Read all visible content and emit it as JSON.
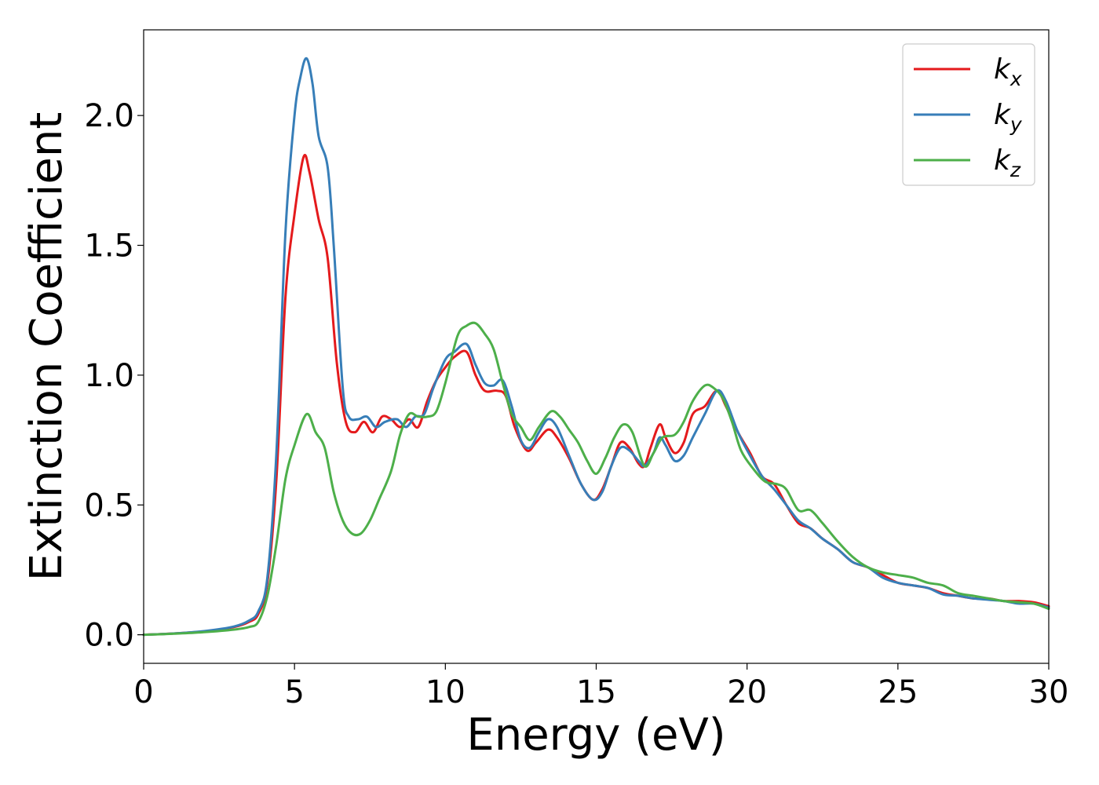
{
  "chart_data": {
    "type": "line",
    "xlabel": "Energy (eV)",
    "ylabel": "Extinction Coefficient",
    "xlim": [
      0,
      30
    ],
    "ylim": [
      -0.11,
      2.33
    ],
    "xticks": [
      0,
      5,
      10,
      15,
      20,
      25,
      30
    ],
    "xtick_labels": [
      "0",
      "5",
      "10",
      "15",
      "20",
      "25",
      "30"
    ],
    "yticks": [
      0.0,
      0.5,
      1.0,
      1.5,
      2.0
    ],
    "ytick_labels": [
      "0.0",
      "0.5",
      "1.0",
      "1.5",
      "2.0"
    ],
    "grid": false,
    "legend_position": "top-right",
    "series": [
      {
        "name": "k_x",
        "label_main": "k",
        "label_sub": "x",
        "color": "#e41a1c",
        "points": [
          [
            0,
            0
          ],
          [
            1,
            0.005
          ],
          [
            2,
            0.013
          ],
          [
            3,
            0.03
          ],
          [
            3.5,
            0.05
          ],
          [
            3.8,
            0.08
          ],
          [
            4.1,
            0.2
          ],
          [
            4.4,
            0.6
          ],
          [
            4.7,
            1.3
          ],
          [
            5.0,
            1.62
          ],
          [
            5.3,
            1.84
          ],
          [
            5.5,
            1.78
          ],
          [
            5.8,
            1.6
          ],
          [
            6.1,
            1.45
          ],
          [
            6.4,
            1.05
          ],
          [
            6.7,
            0.82
          ],
          [
            7.0,
            0.78
          ],
          [
            7.3,
            0.82
          ],
          [
            7.6,
            0.78
          ],
          [
            7.9,
            0.84
          ],
          [
            8.2,
            0.83
          ],
          [
            8.5,
            0.8
          ],
          [
            8.8,
            0.83
          ],
          [
            9.1,
            0.8
          ],
          [
            9.4,
            0.9
          ],
          [
            9.7,
            0.98
          ],
          [
            10.0,
            1.03
          ],
          [
            10.3,
            1.07
          ],
          [
            10.7,
            1.09
          ],
          [
            11.0,
            1.0
          ],
          [
            11.3,
            0.94
          ],
          [
            11.7,
            0.94
          ],
          [
            12.0,
            0.92
          ],
          [
            12.3,
            0.8
          ],
          [
            12.7,
            0.71
          ],
          [
            13.0,
            0.74
          ],
          [
            13.4,
            0.79
          ],
          [
            13.7,
            0.76
          ],
          [
            14.1,
            0.68
          ],
          [
            14.5,
            0.58
          ],
          [
            14.9,
            0.52
          ],
          [
            15.2,
            0.56
          ],
          [
            15.5,
            0.65
          ],
          [
            15.8,
            0.74
          ],
          [
            16.1,
            0.72
          ],
          [
            16.4,
            0.66
          ],
          [
            16.6,
            0.65
          ],
          [
            16.8,
            0.72
          ],
          [
            17.1,
            0.81
          ],
          [
            17.3,
            0.76
          ],
          [
            17.6,
            0.7
          ],
          [
            17.9,
            0.74
          ],
          [
            18.2,
            0.85
          ],
          [
            18.6,
            0.88
          ],
          [
            19.0,
            0.94
          ],
          [
            19.3,
            0.88
          ],
          [
            19.7,
            0.78
          ],
          [
            20.1,
            0.7
          ],
          [
            20.5,
            0.61
          ],
          [
            20.9,
            0.58
          ],
          [
            21.3,
            0.5
          ],
          [
            21.7,
            0.43
          ],
          [
            22.1,
            0.41
          ],
          [
            22.5,
            0.37
          ],
          [
            23.0,
            0.33
          ],
          [
            23.5,
            0.28
          ],
          [
            24.0,
            0.26
          ],
          [
            24.5,
            0.23
          ],
          [
            25.0,
            0.2
          ],
          [
            25.5,
            0.19
          ],
          [
            26.0,
            0.18
          ],
          [
            26.5,
            0.16
          ],
          [
            27.0,
            0.15
          ],
          [
            27.5,
            0.14
          ],
          [
            28.0,
            0.14
          ],
          [
            28.5,
            0.13
          ],
          [
            29.0,
            0.13
          ],
          [
            29.5,
            0.125
          ],
          [
            30,
            0.11
          ]
        ]
      },
      {
        "name": "k_y",
        "label_main": "k",
        "label_sub": "y",
        "color": "#377eb8",
        "points": [
          [
            0,
            0
          ],
          [
            1,
            0.005
          ],
          [
            2,
            0.014
          ],
          [
            3,
            0.032
          ],
          [
            3.5,
            0.055
          ],
          [
            3.8,
            0.09
          ],
          [
            4.1,
            0.22
          ],
          [
            4.4,
            0.7
          ],
          [
            4.7,
            1.55
          ],
          [
            5.0,
            2.0
          ],
          [
            5.2,
            2.15
          ],
          [
            5.4,
            2.22
          ],
          [
            5.6,
            2.12
          ],
          [
            5.8,
            1.92
          ],
          [
            6.1,
            1.8
          ],
          [
            6.3,
            1.5
          ],
          [
            6.6,
            0.95
          ],
          [
            6.8,
            0.84
          ],
          [
            7.1,
            0.83
          ],
          [
            7.4,
            0.84
          ],
          [
            7.7,
            0.8
          ],
          [
            8.0,
            0.82
          ],
          [
            8.4,
            0.83
          ],
          [
            8.7,
            0.8
          ],
          [
            9.0,
            0.84
          ],
          [
            9.3,
            0.85
          ],
          [
            9.6,
            0.95
          ],
          [
            10.0,
            1.06
          ],
          [
            10.3,
            1.09
          ],
          [
            10.7,
            1.12
          ],
          [
            11.0,
            1.04
          ],
          [
            11.3,
            0.97
          ],
          [
            11.6,
            0.96
          ],
          [
            11.9,
            0.98
          ],
          [
            12.2,
            0.88
          ],
          [
            12.5,
            0.75
          ],
          [
            12.8,
            0.72
          ],
          [
            13.1,
            0.78
          ],
          [
            13.4,
            0.83
          ],
          [
            13.7,
            0.8
          ],
          [
            14.1,
            0.69
          ],
          [
            14.5,
            0.58
          ],
          [
            14.9,
            0.52
          ],
          [
            15.2,
            0.55
          ],
          [
            15.5,
            0.65
          ],
          [
            15.8,
            0.72
          ],
          [
            16.1,
            0.71
          ],
          [
            16.4,
            0.67
          ],
          [
            16.6,
            0.65
          ],
          [
            16.9,
            0.7
          ],
          [
            17.1,
            0.76
          ],
          [
            17.3,
            0.73
          ],
          [
            17.6,
            0.67
          ],
          [
            17.9,
            0.69
          ],
          [
            18.2,
            0.76
          ],
          [
            18.6,
            0.85
          ],
          [
            19.0,
            0.94
          ],
          [
            19.3,
            0.9
          ],
          [
            19.7,
            0.78
          ],
          [
            20.1,
            0.69
          ],
          [
            20.5,
            0.61
          ],
          [
            20.9,
            0.56
          ],
          [
            21.3,
            0.5
          ],
          [
            21.7,
            0.44
          ],
          [
            22.1,
            0.41
          ],
          [
            22.5,
            0.37
          ],
          [
            23.0,
            0.33
          ],
          [
            23.5,
            0.28
          ],
          [
            24.0,
            0.26
          ],
          [
            24.5,
            0.22
          ],
          [
            25.0,
            0.2
          ],
          [
            25.5,
            0.19
          ],
          [
            26.0,
            0.18
          ],
          [
            26.5,
            0.155
          ],
          [
            27.0,
            0.15
          ],
          [
            27.5,
            0.14
          ],
          [
            28.0,
            0.135
          ],
          [
            28.5,
            0.13
          ],
          [
            29.0,
            0.12
          ],
          [
            29.5,
            0.12
          ],
          [
            30,
            0.105
          ]
        ]
      },
      {
        "name": "k_z",
        "label_main": "k",
        "label_sub": "z",
        "color": "#4daf4a",
        "points": [
          [
            0,
            0
          ],
          [
            1,
            0.004
          ],
          [
            2,
            0.01
          ],
          [
            3,
            0.02
          ],
          [
            3.5,
            0.03
          ],
          [
            3.8,
            0.05
          ],
          [
            4.1,
            0.15
          ],
          [
            4.4,
            0.35
          ],
          [
            4.7,
            0.6
          ],
          [
            5.0,
            0.73
          ],
          [
            5.4,
            0.85
          ],
          [
            5.7,
            0.78
          ],
          [
            6.0,
            0.72
          ],
          [
            6.3,
            0.55
          ],
          [
            6.6,
            0.44
          ],
          [
            6.9,
            0.39
          ],
          [
            7.2,
            0.39
          ],
          [
            7.5,
            0.44
          ],
          [
            7.8,
            0.52
          ],
          [
            8.2,
            0.63
          ],
          [
            8.5,
            0.77
          ],
          [
            8.8,
            0.85
          ],
          [
            9.1,
            0.84
          ],
          [
            9.4,
            0.84
          ],
          [
            9.7,
            0.86
          ],
          [
            10.0,
            0.97
          ],
          [
            10.4,
            1.15
          ],
          [
            10.7,
            1.19
          ],
          [
            11.0,
            1.2
          ],
          [
            11.3,
            1.16
          ],
          [
            11.6,
            1.1
          ],
          [
            11.9,
            0.97
          ],
          [
            12.2,
            0.85
          ],
          [
            12.5,
            0.8
          ],
          [
            12.8,
            0.75
          ],
          [
            13.1,
            0.8
          ],
          [
            13.5,
            0.86
          ],
          [
            13.8,
            0.84
          ],
          [
            14.1,
            0.79
          ],
          [
            14.4,
            0.74
          ],
          [
            14.7,
            0.67
          ],
          [
            15.0,
            0.62
          ],
          [
            15.3,
            0.68
          ],
          [
            15.6,
            0.76
          ],
          [
            15.9,
            0.81
          ],
          [
            16.2,
            0.78
          ],
          [
            16.6,
            0.65
          ],
          [
            16.9,
            0.7
          ],
          [
            17.2,
            0.76
          ],
          [
            17.6,
            0.77
          ],
          [
            17.9,
            0.82
          ],
          [
            18.2,
            0.9
          ],
          [
            18.6,
            0.96
          ],
          [
            18.9,
            0.95
          ],
          [
            19.2,
            0.91
          ],
          [
            19.5,
            0.82
          ],
          [
            19.8,
            0.71
          ],
          [
            20.2,
            0.64
          ],
          [
            20.6,
            0.59
          ],
          [
            21.0,
            0.58
          ],
          [
            21.3,
            0.56
          ],
          [
            21.7,
            0.48
          ],
          [
            22.1,
            0.48
          ],
          [
            22.5,
            0.43
          ],
          [
            23.0,
            0.36
          ],
          [
            23.5,
            0.3
          ],
          [
            24.0,
            0.26
          ],
          [
            24.5,
            0.24
          ],
          [
            25.0,
            0.23
          ],
          [
            25.5,
            0.22
          ],
          [
            26.0,
            0.2
          ],
          [
            26.5,
            0.19
          ],
          [
            27.0,
            0.16
          ],
          [
            27.5,
            0.15
          ],
          [
            28.0,
            0.14
          ],
          [
            28.5,
            0.13
          ],
          [
            29.0,
            0.125
          ],
          [
            29.5,
            0.12
          ],
          [
            30,
            0.1
          ]
        ]
      }
    ]
  }
}
